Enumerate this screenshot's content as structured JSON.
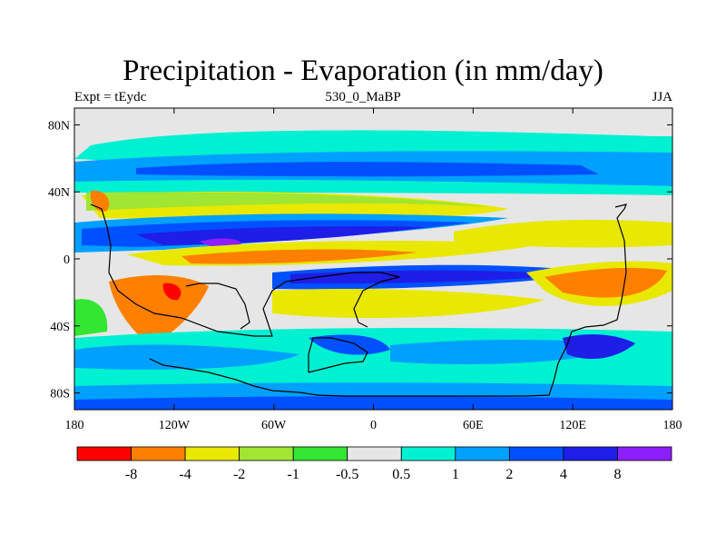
{
  "title": "Precipitation - Evaporation (in mm/day)",
  "subtitle_left": "Expt = tEydc",
  "subtitle_center": "530_0_MaBP",
  "subtitle_right": "JJA",
  "map": {
    "lon_range": [
      -180,
      180
    ],
    "lat_range": [
      -90,
      90
    ],
    "lat_ticks": [
      {
        "value": 80,
        "label": "80N"
      },
      {
        "value": 40,
        "label": "40N"
      },
      {
        "value": 0,
        "label": "0"
      },
      {
        "value": -40,
        "label": "40S"
      },
      {
        "value": -80,
        "label": "80S"
      }
    ],
    "lon_ticks": [
      {
        "value": -180,
        "label": "180"
      },
      {
        "value": -120,
        "label": "120W"
      },
      {
        "value": -60,
        "label": "60W"
      },
      {
        "value": 0,
        "label": "0"
      },
      {
        "value": 60,
        "label": "60E"
      },
      {
        "value": 120,
        "label": "120E"
      },
      {
        "value": 180,
        "label": "180"
      }
    ]
  },
  "colorbar": {
    "colors": [
      "#ff0000",
      "#ff8000",
      "#e8e800",
      "#a0e632",
      "#32e632",
      "#e6e6e6",
      "#00f0d2",
      "#00a0ff",
      "#0050ff",
      "#1e1ee6",
      "#8c1eff"
    ],
    "labels": [
      "-8",
      "-4",
      "-2",
      "-1",
      "-0.5",
      "0.5",
      "1",
      "2",
      "4",
      "8"
    ]
  }
}
